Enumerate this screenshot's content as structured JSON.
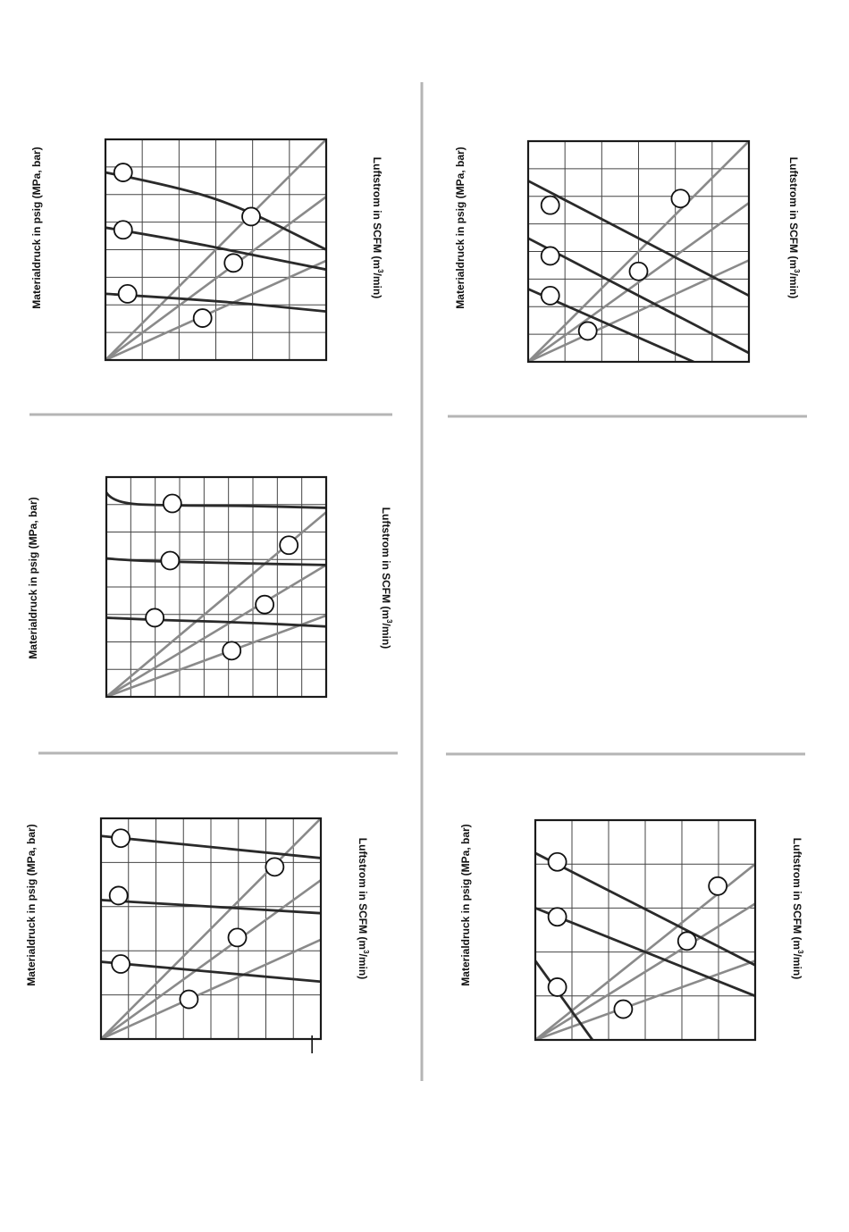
{
  "labels": {
    "material_pressure": "Materialdruck in psig (MPa, bar)",
    "airflow_prefix": "Luftstrom in SCFM (m",
    "airflow_sup": "3",
    "airflow_suffix": "/min)"
  },
  "colors": {
    "frame": "#1a1a1a",
    "grid": "#444444",
    "fluid_curve": "#2a2a2a",
    "air_line": "#8a8a8a",
    "marker_fill": "#ffffff",
    "divider": "#b5b5b5"
  },
  "chart_data": [
    {
      "id": "chart-1",
      "type": "line",
      "grid": true,
      "grid_cols": 6,
      "grid_rows": 8,
      "xlim": [
        0,
        1
      ],
      "ylim": [
        0,
        1
      ],
      "curves": [
        {
          "kind": "fluid",
          "points": [
            [
              0,
              0.85
            ],
            [
              0.3,
              0.79
            ],
            [
              0.6,
              0.7
            ],
            [
              1,
              0.5
            ]
          ]
        },
        {
          "kind": "fluid",
          "points": [
            [
              0,
              0.6
            ],
            [
              0.3,
              0.55
            ],
            [
              0.6,
              0.49
            ],
            [
              1,
              0.41
            ]
          ]
        },
        {
          "kind": "fluid",
          "points": [
            [
              0,
              0.3
            ],
            [
              0.5,
              0.27
            ],
            [
              1,
              0.22
            ]
          ]
        },
        {
          "kind": "air",
          "points": [
            [
              0,
              0
            ],
            [
              1,
              1
            ]
          ]
        },
        {
          "kind": "air",
          "points": [
            [
              0,
              0
            ],
            [
              1,
              0.74
            ]
          ]
        },
        {
          "kind": "air",
          "points": [
            [
              0,
              0
            ],
            [
              1,
              0.45
            ]
          ]
        }
      ],
      "markers": [
        [
          0.08,
          0.85
        ],
        [
          0.08,
          0.59
        ],
        [
          0.1,
          0.3
        ],
        [
          0.66,
          0.65
        ],
        [
          0.58,
          0.44
        ],
        [
          0.44,
          0.19
        ]
      ]
    },
    {
      "id": "chart-2",
      "type": "line",
      "grid": true,
      "grid_cols": 6,
      "grid_rows": 8,
      "xlim": [
        0,
        1
      ],
      "ylim": [
        0,
        1
      ],
      "curves": [
        {
          "kind": "fluid",
          "points": [
            [
              0,
              0.82
            ],
            [
              1,
              0.3
            ]
          ]
        },
        {
          "kind": "fluid",
          "points": [
            [
              0,
              0.56
            ],
            [
              1,
              0.04
            ]
          ]
        },
        {
          "kind": "fluid",
          "points": [
            [
              0,
              0.33
            ],
            [
              0.75,
              0
            ]
          ]
        },
        {
          "kind": "air",
          "points": [
            [
              0,
              0
            ],
            [
              1,
              1
            ]
          ]
        },
        {
          "kind": "air",
          "points": [
            [
              0,
              0
            ],
            [
              1,
              0.72
            ]
          ]
        },
        {
          "kind": "air",
          "points": [
            [
              0,
              0
            ],
            [
              1,
              0.46
            ]
          ]
        }
      ],
      "markers": [
        [
          0.1,
          0.71
        ],
        [
          0.1,
          0.48
        ],
        [
          0.1,
          0.3
        ],
        [
          0.69,
          0.74
        ],
        [
          0.5,
          0.41
        ],
        [
          0.27,
          0.14
        ]
      ]
    },
    {
      "id": "chart-3",
      "type": "line",
      "grid": true,
      "grid_cols": 9,
      "grid_rows": 8,
      "xlim": [
        0,
        1
      ],
      "ylim": [
        0,
        1
      ],
      "curves": [
        {
          "kind": "fluid",
          "points": [
            [
              0,
              0.93
            ],
            [
              0.03,
              0.88
            ],
            [
              0.3,
              0.87
            ],
            [
              0.6,
              0.87
            ],
            [
              1,
              0.86
            ]
          ]
        },
        {
          "kind": "fluid",
          "points": [
            [
              0,
              0.63
            ],
            [
              0.1,
              0.62
            ],
            [
              0.5,
              0.61
            ],
            [
              1,
              0.6
            ]
          ]
        },
        {
          "kind": "fluid",
          "points": [
            [
              0,
              0.36
            ],
            [
              0.2,
              0.35
            ],
            [
              0.6,
              0.34
            ],
            [
              1,
              0.32
            ]
          ]
        },
        {
          "kind": "air",
          "points": [
            [
              0,
              0
            ],
            [
              1,
              0.84
            ]
          ]
        },
        {
          "kind": "air",
          "points": [
            [
              0,
              0
            ],
            [
              1,
              0.6
            ]
          ]
        },
        {
          "kind": "air",
          "points": [
            [
              0,
              0
            ],
            [
              1,
              0.37
            ]
          ]
        }
      ],
      "markers": [
        [
          0.3,
          0.88
        ],
        [
          0.29,
          0.62
        ],
        [
          0.22,
          0.36
        ],
        [
          0.83,
          0.69
        ],
        [
          0.72,
          0.42
        ],
        [
          0.57,
          0.21
        ]
      ]
    },
    {
      "id": "chart-4",
      "type": "line",
      "grid": true,
      "grid_cols": 8,
      "grid_rows": 5,
      "xlim": [
        0,
        1
      ],
      "ylim": [
        0,
        1
      ],
      "curves": [
        {
          "kind": "fluid",
          "points": [
            [
              0,
              0.92
            ],
            [
              1,
              0.82
            ]
          ]
        },
        {
          "kind": "fluid",
          "points": [
            [
              0,
              0.63
            ],
            [
              1,
              0.57
            ]
          ]
        },
        {
          "kind": "fluid",
          "points": [
            [
              0,
              0.35
            ],
            [
              1,
              0.26
            ]
          ]
        },
        {
          "kind": "air",
          "points": [
            [
              0,
              0
            ],
            [
              1,
              1
            ]
          ]
        },
        {
          "kind": "air",
          "points": [
            [
              0,
              0
            ],
            [
              1,
              0.72
            ]
          ]
        },
        {
          "kind": "air",
          "points": [
            [
              0,
              0
            ],
            [
              1,
              0.45
            ]
          ]
        }
      ],
      "markers": [
        [
          0.09,
          0.91
        ],
        [
          0.08,
          0.65
        ],
        [
          0.09,
          0.34
        ],
        [
          0.79,
          0.78
        ],
        [
          0.62,
          0.46
        ],
        [
          0.4,
          0.18
        ]
      ],
      "tick_mark": [
        0.96,
        -0.04
      ]
    },
    {
      "id": "chart-5",
      "type": "line",
      "grid": true,
      "grid_cols": 6,
      "grid_rows": 5,
      "xlim": [
        0,
        1
      ],
      "ylim": [
        0,
        1
      ],
      "curves": [
        {
          "kind": "fluid",
          "points": [
            [
              0,
              0.85
            ],
            [
              1,
              0.34
            ]
          ]
        },
        {
          "kind": "fluid",
          "points": [
            [
              0,
              0.6
            ],
            [
              1,
              0.2
            ]
          ]
        },
        {
          "kind": "fluid",
          "points": [
            [
              0,
              0.36
            ],
            [
              0.26,
              0
            ]
          ]
        },
        {
          "kind": "air",
          "points": [
            [
              0,
              0
            ],
            [
              1,
              0.8
            ]
          ]
        },
        {
          "kind": "air",
          "points": [
            [
              0,
              0
            ],
            [
              1,
              0.62
            ]
          ]
        },
        {
          "kind": "air",
          "points": [
            [
              0,
              0
            ],
            [
              1,
              0.36
            ]
          ]
        }
      ],
      "markers": [
        [
          0.1,
          0.81
        ],
        [
          0.1,
          0.56
        ],
        [
          0.1,
          0.24
        ],
        [
          0.83,
          0.7
        ],
        [
          0.69,
          0.45
        ],
        [
          0.4,
          0.14
        ]
      ]
    }
  ]
}
